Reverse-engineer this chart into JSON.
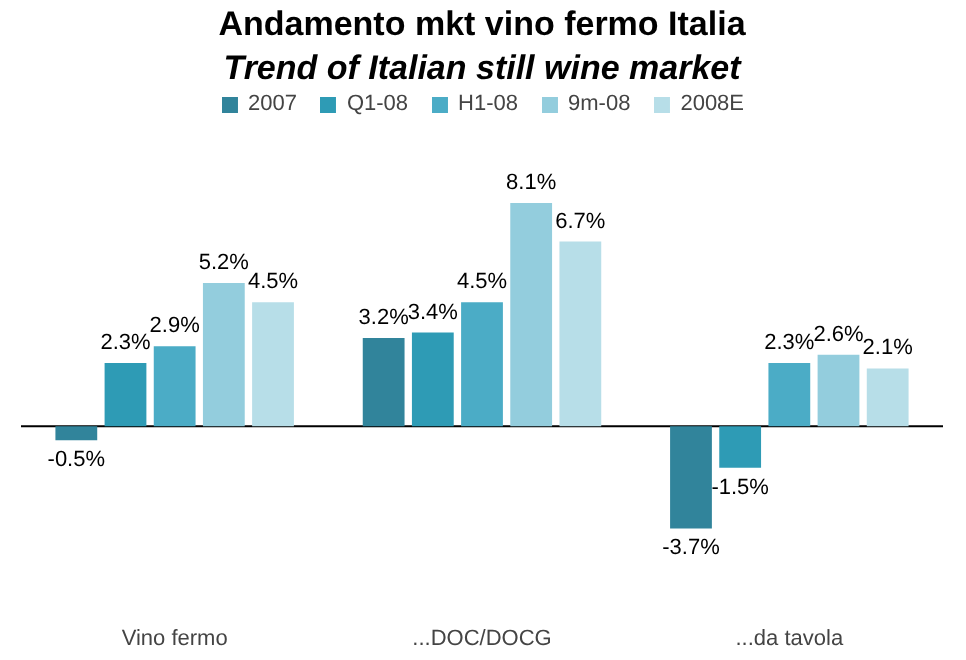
{
  "chart_data": {
    "type": "bar",
    "title": "Andamento mkt vino fermo Italia",
    "subtitle": "Trend of Italian still wine market",
    "categories": [
      "Vino fermo",
      "...DOC/DOCG",
      "...da tavola"
    ],
    "series": [
      {
        "name": "2007",
        "color": "#31849b",
        "values": [
          -0.5,
          3.2,
          -3.7
        ],
        "value_labels": [
          "-0.5%",
          "3.2%",
          "-3.7%"
        ]
      },
      {
        "name": "Q1-08",
        "color": "#2e9bb5",
        "values": [
          2.3,
          3.4,
          -1.5
        ],
        "value_labels": [
          "2.3%",
          "3.4%",
          "-1.5%"
        ]
      },
      {
        "name": "H1-08",
        "color": "#4bacc6",
        "values": [
          2.9,
          4.5,
          2.3
        ],
        "value_labels": [
          "2.9%",
          "4.5%",
          "2.3%"
        ]
      },
      {
        "name": "9m-08",
        "color": "#93cddd",
        "values": [
          5.2,
          8.1,
          2.6
        ],
        "value_labels": [
          "5.2%",
          "8.1%",
          "2.6%"
        ]
      },
      {
        "name": "2008E",
        "color": "#b7dee8",
        "values": [
          4.5,
          6.7,
          2.1
        ],
        "value_labels": [
          "4.5%",
          "6.7%",
          "2.1%"
        ]
      }
    ],
    "legend": "top",
    "tick_labels": "x"
  }
}
